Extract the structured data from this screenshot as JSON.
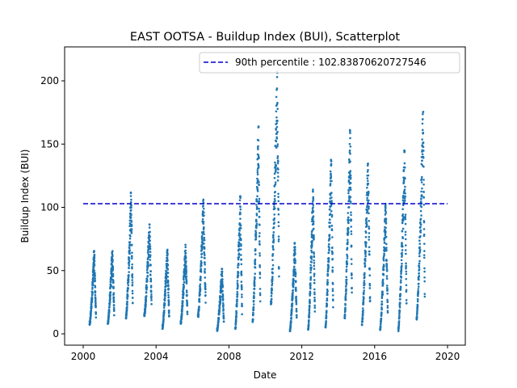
{
  "chart_data": {
    "type": "scatter",
    "title": "EAST OOTSA - Buildup Index (BUI), Scatterplot",
    "xlabel": "Date",
    "ylabel": "Buildup Index (BUI)",
    "xlim": [
      2000.0,
      2020.0
    ],
    "ylim": [
      -9.0,
      226.0
    ],
    "x_ticks": [
      2000,
      2004,
      2008,
      2012,
      2016,
      2020
    ],
    "y_ticks": [
      0,
      50,
      100,
      150,
      200
    ],
    "grid": false,
    "legend_position": "top-right",
    "marker_color": "#1f77b4",
    "reference_line": {
      "label": "90th percentile : 102.83870620727546",
      "value": 102.83870620727546,
      "x_range": [
        2000.0,
        2020.0
      ],
      "color": "#0000cc",
      "style": "dashed"
    },
    "seasons": [
      {
        "start": 2000.35,
        "end": 2000.7,
        "low": 7,
        "peak": 66,
        "peak_pos": 0.72
      },
      {
        "start": 2001.35,
        "end": 2001.7,
        "low": 8,
        "peak": 68,
        "peak_pos": 0.72
      },
      {
        "start": 2002.35,
        "end": 2002.72,
        "low": 12,
        "peak": 112,
        "peak_pos": 0.74
      },
      {
        "start": 2003.35,
        "end": 2003.75,
        "low": 14,
        "peak": 88,
        "peak_pos": 0.72
      },
      {
        "start": 2004.35,
        "end": 2004.72,
        "low": 4,
        "peak": 70,
        "peak_pos": 0.72
      },
      {
        "start": 2005.35,
        "end": 2005.72,
        "low": 8,
        "peak": 71,
        "peak_pos": 0.72
      },
      {
        "start": 2006.3,
        "end": 2006.72,
        "low": 13,
        "peak": 107,
        "peak_pos": 0.72
      },
      {
        "start": 2007.35,
        "end": 2007.72,
        "low": 2,
        "peak": 53,
        "peak_pos": 0.72
      },
      {
        "start": 2008.35,
        "end": 2008.72,
        "low": 4,
        "peak": 109,
        "peak_pos": 0.74
      },
      {
        "start": 2009.3,
        "end": 2009.72,
        "low": 9,
        "peak": 164,
        "peak_pos": 0.76
      },
      {
        "start": 2010.3,
        "end": 2010.75,
        "low": 23,
        "peak": 208,
        "peak_pos": 0.78
      },
      {
        "start": 2011.35,
        "end": 2011.72,
        "low": 2,
        "peak": 73,
        "peak_pos": 0.72
      },
      {
        "start": 2012.35,
        "end": 2012.72,
        "low": 3,
        "peak": 114,
        "peak_pos": 0.72
      },
      {
        "start": 2013.3,
        "end": 2013.72,
        "low": 5,
        "peak": 138,
        "peak_pos": 0.74
      },
      {
        "start": 2014.35,
        "end": 2014.75,
        "low": 12,
        "peak": 162,
        "peak_pos": 0.76
      },
      {
        "start": 2015.3,
        "end": 2015.75,
        "low": 7,
        "peak": 135,
        "peak_pos": 0.74
      },
      {
        "start": 2016.3,
        "end": 2016.72,
        "low": 3,
        "peak": 103,
        "peak_pos": 0.72
      },
      {
        "start": 2017.3,
        "end": 2017.75,
        "low": 2,
        "peak": 145,
        "peak_pos": 0.76
      },
      {
        "start": 2018.3,
        "end": 2018.75,
        "low": 10,
        "peak": 176,
        "peak_pos": 0.8
      }
    ]
  }
}
